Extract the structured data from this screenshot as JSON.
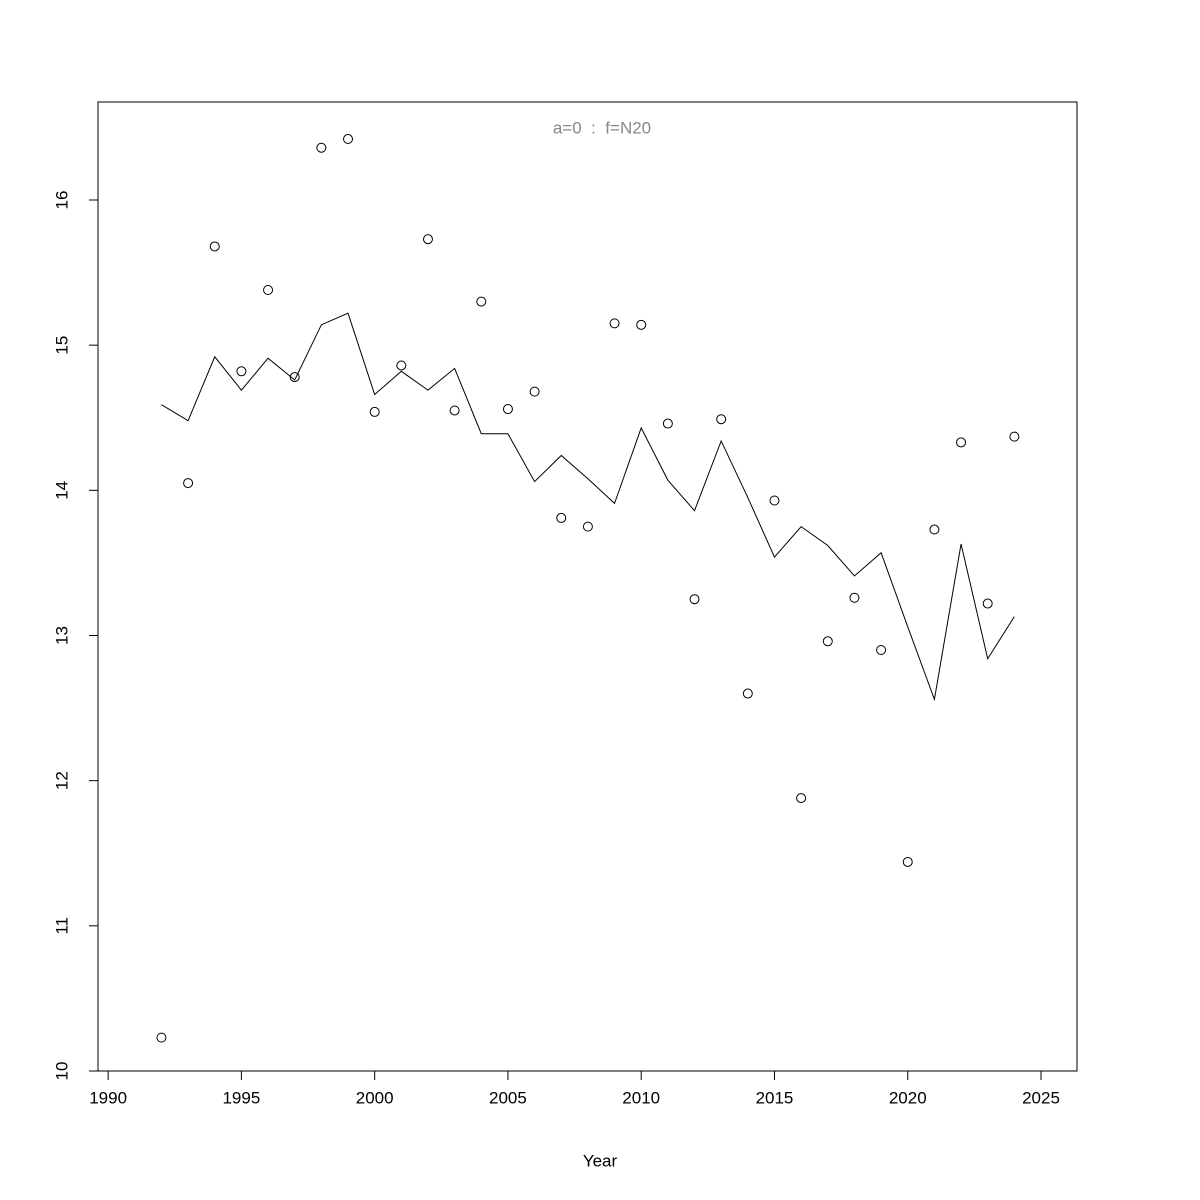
{
  "chart_data": {
    "type": "line",
    "title": "a=0  :  f=N20",
    "x_label": "Year",
    "x": [
      1992,
      1993,
      1994,
      1995,
      1996,
      1997,
      1998,
      1999,
      2000,
      2001,
      2002,
      2003,
      2004,
      2005,
      2006,
      2007,
      2008,
      2009,
      2010,
      2011,
      2012,
      2013,
      2014,
      2015,
      2016,
      2017,
      2018,
      2019,
      2020,
      2021,
      2022,
      2023,
      2024
    ],
    "series": [
      {
        "style": "points",
        "color": "#000000",
        "values": [
          10.23,
          14.05,
          15.68,
          14.82,
          15.38,
          14.78,
          16.36,
          16.42,
          14.54,
          14.86,
          15.73,
          14.55,
          15.3,
          14.56,
          14.68,
          13.81,
          13.75,
          15.15,
          15.14,
          14.46,
          13.25,
          14.49,
          12.6,
          13.93,
          11.88,
          12.96,
          13.26,
          12.9,
          11.44,
          13.73,
          14.33,
          13.22,
          14.37
        ]
      },
      {
        "style": "line",
        "color": "#000000",
        "values": [
          14.59,
          14.48,
          14.92,
          14.69,
          14.91,
          14.76,
          15.14,
          15.22,
          14.66,
          14.82,
          14.69,
          14.84,
          14.39,
          14.39,
          14.06,
          14.24,
          14.08,
          13.91,
          14.43,
          14.07,
          13.86,
          14.34,
          13.95,
          13.54,
          13.75,
          13.62,
          13.41,
          13.57,
          13.06,
          12.56,
          13.63,
          12.84,
          13.13
        ]
      }
    ],
    "xlim": [
      1989.62,
      2026.35
    ],
    "ylim": [
      10,
      16.675
    ],
    "xticks": [
      1990,
      1995,
      2000,
      2005,
      2010,
      2015,
      2020,
      2025
    ],
    "yticks": [
      10,
      11,
      12,
      13,
      14,
      15,
      16
    ]
  }
}
